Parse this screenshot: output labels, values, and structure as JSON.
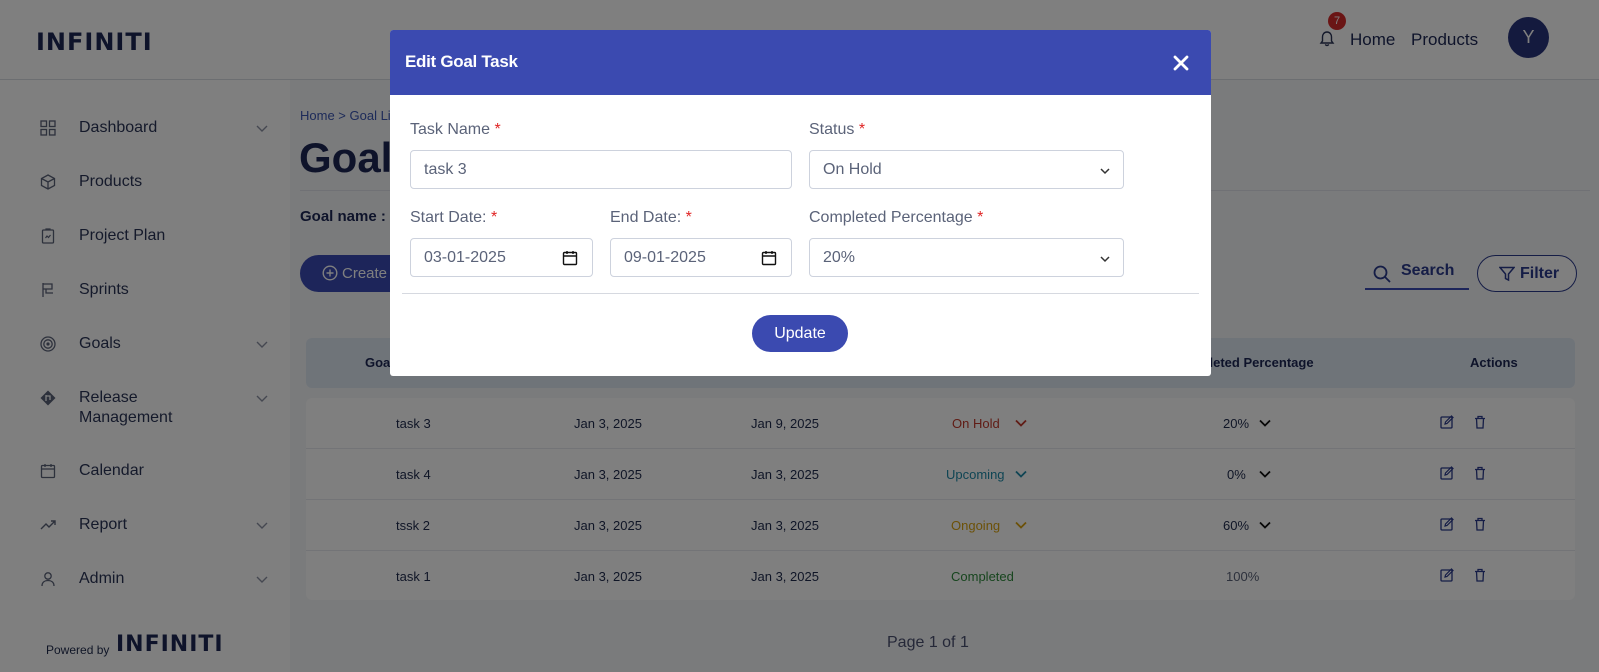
{
  "header": {
    "logo": "INFINITI",
    "notification_count": "7",
    "nav": [
      "Home",
      "Products"
    ],
    "avatar_initial": "Y"
  },
  "sidebar": {
    "items": [
      {
        "label": "Dashboard",
        "icon": "dashboard-icon",
        "has_submenu": true
      },
      {
        "label": "Products",
        "icon": "box-icon",
        "has_submenu": false
      },
      {
        "label": "Project Plan",
        "icon": "clipboard-icon",
        "has_submenu": false
      },
      {
        "label": "Sprints",
        "icon": "sprint-icon",
        "has_submenu": false
      },
      {
        "label": "Goals",
        "icon": "target-icon",
        "has_submenu": true
      },
      {
        "label": "Release",
        "label2": "Management",
        "icon": "release-icon",
        "has_submenu": true
      },
      {
        "label": "Calendar",
        "icon": "calendar-icon",
        "has_submenu": false
      },
      {
        "label": "Report",
        "icon": "trend-icon",
        "has_submenu": true
      },
      {
        "label": "Admin",
        "icon": "user-icon",
        "has_submenu": true
      }
    ],
    "powered_by": "Powered by",
    "powered_logo": "INFINITI"
  },
  "main": {
    "breadcrumb": "Home > Goal Li",
    "title": "Goal",
    "goal_name_label": "Goal name :",
    "create_button": "Create",
    "search_label": "Search",
    "filter_label": "Filter",
    "table": {
      "headers": [
        "Goa",
        "mpleted Percentage",
        "Actions"
      ],
      "rows": [
        {
          "name": "task 3",
          "start": "Jan 3, 2025",
          "end": "Jan 9, 2025",
          "status": "On Hold",
          "status_color": "#c0392b",
          "pct": "20%",
          "pct_dropdown": true
        },
        {
          "name": "task 4",
          "start": "Jan 3, 2025",
          "end": "Jan 3, 2025",
          "status": "Upcoming",
          "status_color": "#1f8aa8",
          "pct": "0%",
          "pct_dropdown": true
        },
        {
          "name": "tssk 2",
          "start": "Jan 3, 2025",
          "end": "Jan 3, 2025",
          "status": "Ongoing",
          "status_color": "#d9a311",
          "pct": "60%",
          "pct_dropdown": true
        },
        {
          "name": "task 1",
          "start": "Jan 3, 2025",
          "end": "Jan 3, 2025",
          "status": "Completed",
          "status_color": "#2e8b3d",
          "pct": "100%",
          "pct_dropdown": false
        }
      ]
    },
    "pager": "Page 1 of 1"
  },
  "modal": {
    "title": "Edit Goal Task",
    "task_name_label": "Task Name",
    "task_name_value": "task 3",
    "status_label": "Status",
    "status_value": "On Hold",
    "start_label": "Start Date:",
    "start_value": "03-01-2025",
    "end_label": "End Date:",
    "end_value": "09-01-2025",
    "pct_label": "Completed Percentage",
    "pct_value": "20%",
    "required_mark": "*",
    "update_button": "Update"
  },
  "colors": {
    "accent": "#3b4ab0",
    "navy": "#1c2754",
    "required": "#e02424"
  }
}
